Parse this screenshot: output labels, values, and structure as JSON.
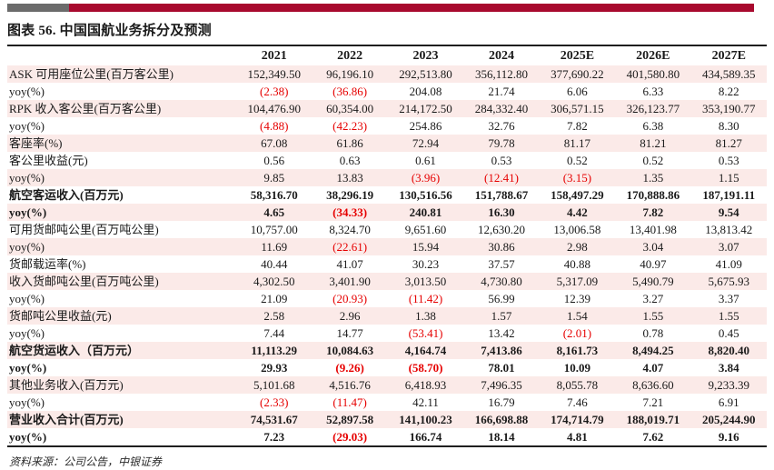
{
  "header": {
    "title": "图表 56. 中国国航业务拆分及预测"
  },
  "footer": {
    "source": "资料来源：公司公告，中银证券"
  },
  "colors": {
    "bar_red": "#a8092e",
    "bar_gray": "#6b6b6b",
    "row_pink": "#fbeae8",
    "negative_red": "#e60000"
  },
  "chart_data": {
    "type": "table",
    "columns": [
      "2021",
      "2022",
      "2023",
      "2024",
      "2025E",
      "2026E",
      "2027E"
    ],
    "negative_format": "parentheses shown in red",
    "rows": [
      {
        "label": "ASK 可用座位公里(百万客公里)",
        "bold": false,
        "values": [
          "152,349.50",
          "96,196.10",
          "292,513.80",
          "356,112.80",
          "377,690.22",
          "401,580.80",
          "434,589.35"
        ]
      },
      {
        "label": "yoy(%)",
        "bold": false,
        "values": [
          "(2.38)",
          "(36.86)",
          "204.08",
          "21.74",
          "6.06",
          "6.33",
          "8.22"
        ]
      },
      {
        "label": "RPK 收入客公里(百万客公里)",
        "bold": false,
        "values": [
          "104,476.90",
          "60,354.00",
          "214,172.50",
          "284,332.40",
          "306,571.15",
          "326,123.77",
          "353,190.77"
        ]
      },
      {
        "label": "yoy(%)",
        "bold": false,
        "values": [
          "(4.88)",
          "(42.23)",
          "254.86",
          "32.76",
          "7.82",
          "6.38",
          "8.30"
        ]
      },
      {
        "label": "客座率(%)",
        "bold": false,
        "values": [
          "67.08",
          "61.86",
          "72.94",
          "79.78",
          "81.17",
          "81.21",
          "81.27"
        ]
      },
      {
        "label": "客公里收益(元)",
        "bold": false,
        "values": [
          "0.56",
          "0.63",
          "0.61",
          "0.53",
          "0.52",
          "0.52",
          "0.53"
        ]
      },
      {
        "label": "yoy(%)",
        "bold": false,
        "values": [
          "9.85",
          "13.83",
          "(3.96)",
          "(12.41)",
          "(3.15)",
          "1.35",
          "1.15"
        ]
      },
      {
        "label": "航空客运收入(百万元)",
        "bold": true,
        "values": [
          "58,316.70",
          "38,296.19",
          "130,516.56",
          "151,788.67",
          "158,497.29",
          "170,888.86",
          "187,191.11"
        ]
      },
      {
        "label": "yoy(%)",
        "bold": true,
        "values": [
          "4.65",
          "(34.33)",
          "240.81",
          "16.30",
          "4.42",
          "7.82",
          "9.54"
        ]
      },
      {
        "label": "可用货邮吨公里(百万吨公里)",
        "bold": false,
        "values": [
          "10,757.00",
          "8,324.70",
          "9,651.60",
          "12,630.20",
          "13,006.58",
          "13,401.98",
          "13,813.42"
        ]
      },
      {
        "label": "yoy(%)",
        "bold": false,
        "values": [
          "11.69",
          "(22.61)",
          "15.94",
          "30.86",
          "2.98",
          "3.04",
          "3.07"
        ]
      },
      {
        "label": "货邮载运率(%)",
        "bold": false,
        "values": [
          "40.44",
          "41.07",
          "30.23",
          "37.57",
          "40.88",
          "40.97",
          "41.09"
        ]
      },
      {
        "label": "收入货邮吨公里(百万吨公里)",
        "bold": false,
        "values": [
          "4,302.50",
          "3,401.90",
          "3,013.50",
          "4,730.80",
          "5,317.09",
          "5,490.79",
          "5,675.93"
        ]
      },
      {
        "label": "yoy(%)",
        "bold": false,
        "values": [
          "21.09",
          "(20.93)",
          "(11.42)",
          "56.99",
          "12.39",
          "3.27",
          "3.37"
        ]
      },
      {
        "label": "货邮吨公里收益(元)",
        "bold": false,
        "values": [
          "2.58",
          "2.96",
          "1.38",
          "1.57",
          "1.54",
          "1.55",
          "1.55"
        ]
      },
      {
        "label": "yoy(%)",
        "bold": false,
        "values": [
          "7.44",
          "14.77",
          "(53.41)",
          "13.42",
          "(2.01)",
          "0.78",
          "0.45"
        ]
      },
      {
        "label": "航空货运收入（百万元）",
        "bold": true,
        "values": [
          "11,113.29",
          "10,084.63",
          "4,164.74",
          "7,413.86",
          "8,161.73",
          "8,494.25",
          "8,820.40"
        ]
      },
      {
        "label": "yoy(%)",
        "bold": true,
        "values": [
          "29.93",
          "(9.26)",
          "(58.70)",
          "78.01",
          "10.09",
          "4.07",
          "3.84"
        ]
      },
      {
        "label": "其他业务收入(百万元)",
        "bold": false,
        "values": [
          "5,101.68",
          "4,516.76",
          "6,418.93",
          "7,496.35",
          "8,055.78",
          "8,636.60",
          "9,233.39"
        ]
      },
      {
        "label": "yoy(%)",
        "bold": false,
        "values": [
          "(2.33)",
          "(11.47)",
          "42.11",
          "16.79",
          "7.46",
          "7.21",
          "6.91"
        ]
      },
      {
        "label": "营业收入合计(百万元)",
        "bold": true,
        "values": [
          "74,531.67",
          "52,897.58",
          "141,100.23",
          "166,698.88",
          "174,714.79",
          "188,019.71",
          "205,244.90"
        ]
      },
      {
        "label": "yoy(%)",
        "bold": true,
        "values": [
          "7.23",
          "(29.03)",
          "166.74",
          "18.14",
          "4.81",
          "7.62",
          "9.16"
        ]
      }
    ]
  }
}
